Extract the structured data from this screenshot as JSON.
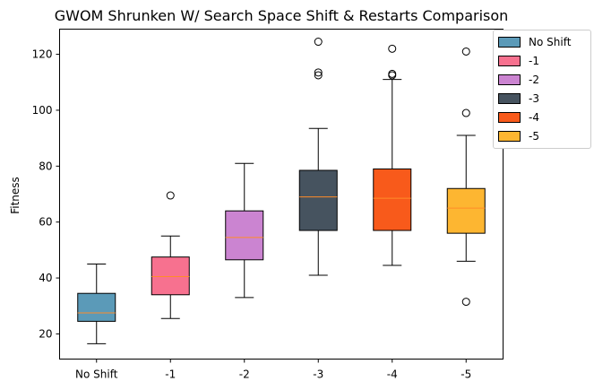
{
  "chart_data": {
    "type": "box",
    "title": "GWOM Shrunken W/ Search Space Shift & Restarts Comparison",
    "xlabel": "",
    "ylabel": "Fitness",
    "ylim": [
      11,
      129
    ],
    "yticks": [
      20,
      40,
      60,
      80,
      100,
      120
    ],
    "categories": [
      "No Shift",
      "-1",
      "-2",
      "-3",
      "-4",
      "-5"
    ],
    "series": [
      {
        "name": "No Shift",
        "color": "#5b9ab8",
        "min": 16.5,
        "q1": 24.5,
        "median": 27.5,
        "q3": 34.5,
        "max": 45,
        "outliers": []
      },
      {
        "name": "-1",
        "color": "#f7718f",
        "min": 25.5,
        "q1": 34,
        "median": 40.5,
        "q3": 47.5,
        "max": 55,
        "outliers": [
          69.5
        ]
      },
      {
        "name": "-2",
        "color": "#cb84d1",
        "min": 33,
        "q1": 46.5,
        "median": 54.5,
        "q3": 64,
        "max": 81,
        "outliers": []
      },
      {
        "name": "-3",
        "color": "#46535f",
        "min": 41,
        "q1": 57,
        "median": 69,
        "q3": 78.5,
        "max": 93.5,
        "outliers": [
          112.5,
          113.5,
          124.5
        ]
      },
      {
        "name": "-4",
        "color": "#f85a1b",
        "min": 44.5,
        "q1": 57,
        "median": 68.5,
        "q3": 79,
        "max": 111,
        "outliers": [
          112.5,
          113,
          122
        ]
      },
      {
        "name": "-5",
        "color": "#fdb631",
        "min": 46,
        "q1": 56,
        "median": 65,
        "q3": 72,
        "max": 91,
        "outliers": [
          31.5,
          99,
          121
        ]
      }
    ],
    "median_color": "#ff8c28",
    "legend_position": "upper-right-outside",
    "grid": false
  }
}
